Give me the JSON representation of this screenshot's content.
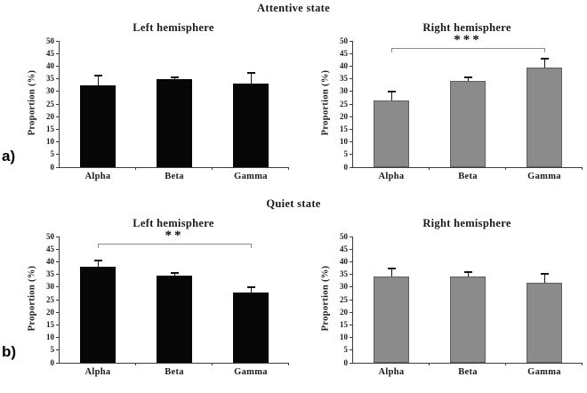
{
  "figure": {
    "rows": [
      {
        "label": "a)",
        "title": "Attentive state"
      },
      {
        "label": "b)",
        "title": "Quiet state"
      }
    ]
  },
  "axis": {
    "ylabel": "Proportion (%)",
    "ymin": 0,
    "ymax": 50,
    "ystep": 5,
    "categories": [
      "Alpha",
      "Beta",
      "Gamma"
    ]
  },
  "colors": {
    "black_bar": "#060606",
    "gray_bar": "#8b8b8b",
    "gray_bar_border": "#5e5e5e",
    "axis": "#3c3c3c",
    "error_bar": "#141414",
    "bracket": "#8a8a8a"
  },
  "chart_data": [
    {
      "type": "bar",
      "title": "Left hemisphere",
      "state": "Attentive state",
      "bar_color": "black",
      "categories": [
        "Alpha",
        "Beta",
        "Gamma"
      ],
      "values": [
        32.3,
        34.8,
        33.0
      ],
      "errors": [
        4.0,
        0.8,
        4.3
      ],
      "xlabel": "",
      "ylabel": "Proportion (%)",
      "ylim": [
        0,
        50
      ],
      "grid": false,
      "significance": null
    },
    {
      "type": "bar",
      "title": "Right hemisphere",
      "state": "Attentive state",
      "bar_color": "gray",
      "categories": [
        "Alpha",
        "Beta",
        "Gamma"
      ],
      "values": [
        26.4,
        34.2,
        39.5
      ],
      "errors": [
        3.4,
        1.4,
        3.5
      ],
      "xlabel": "",
      "ylabel": "Proportion (%)",
      "ylim": [
        0,
        50
      ],
      "grid": false,
      "significance": {
        "label": "***",
        "from": "Alpha",
        "to": "Gamma"
      }
    },
    {
      "type": "bar",
      "title": "Left hemisphere",
      "state": "Quiet state",
      "bar_color": "black",
      "categories": [
        "Alpha",
        "Beta",
        "Gamma"
      ],
      "values": [
        38.0,
        34.5,
        27.8
      ],
      "errors": [
        2.5,
        1.2,
        2.0
      ],
      "xlabel": "",
      "ylabel": "Proportion (%)",
      "ylim": [
        0,
        50
      ],
      "grid": false,
      "significance": {
        "label": "**",
        "from": "Alpha",
        "to": "Gamma"
      }
    },
    {
      "type": "bar",
      "title": "Right hemisphere",
      "state": "Quiet state",
      "bar_color": "gray",
      "categories": [
        "Alpha",
        "Beta",
        "Gamma"
      ],
      "values": [
        34.0,
        34.3,
        31.8
      ],
      "errors": [
        3.3,
        1.7,
        3.4
      ],
      "xlabel": "",
      "ylabel": "Proportion (%)",
      "ylim": [
        0,
        50
      ],
      "grid": false,
      "significance": null
    }
  ]
}
